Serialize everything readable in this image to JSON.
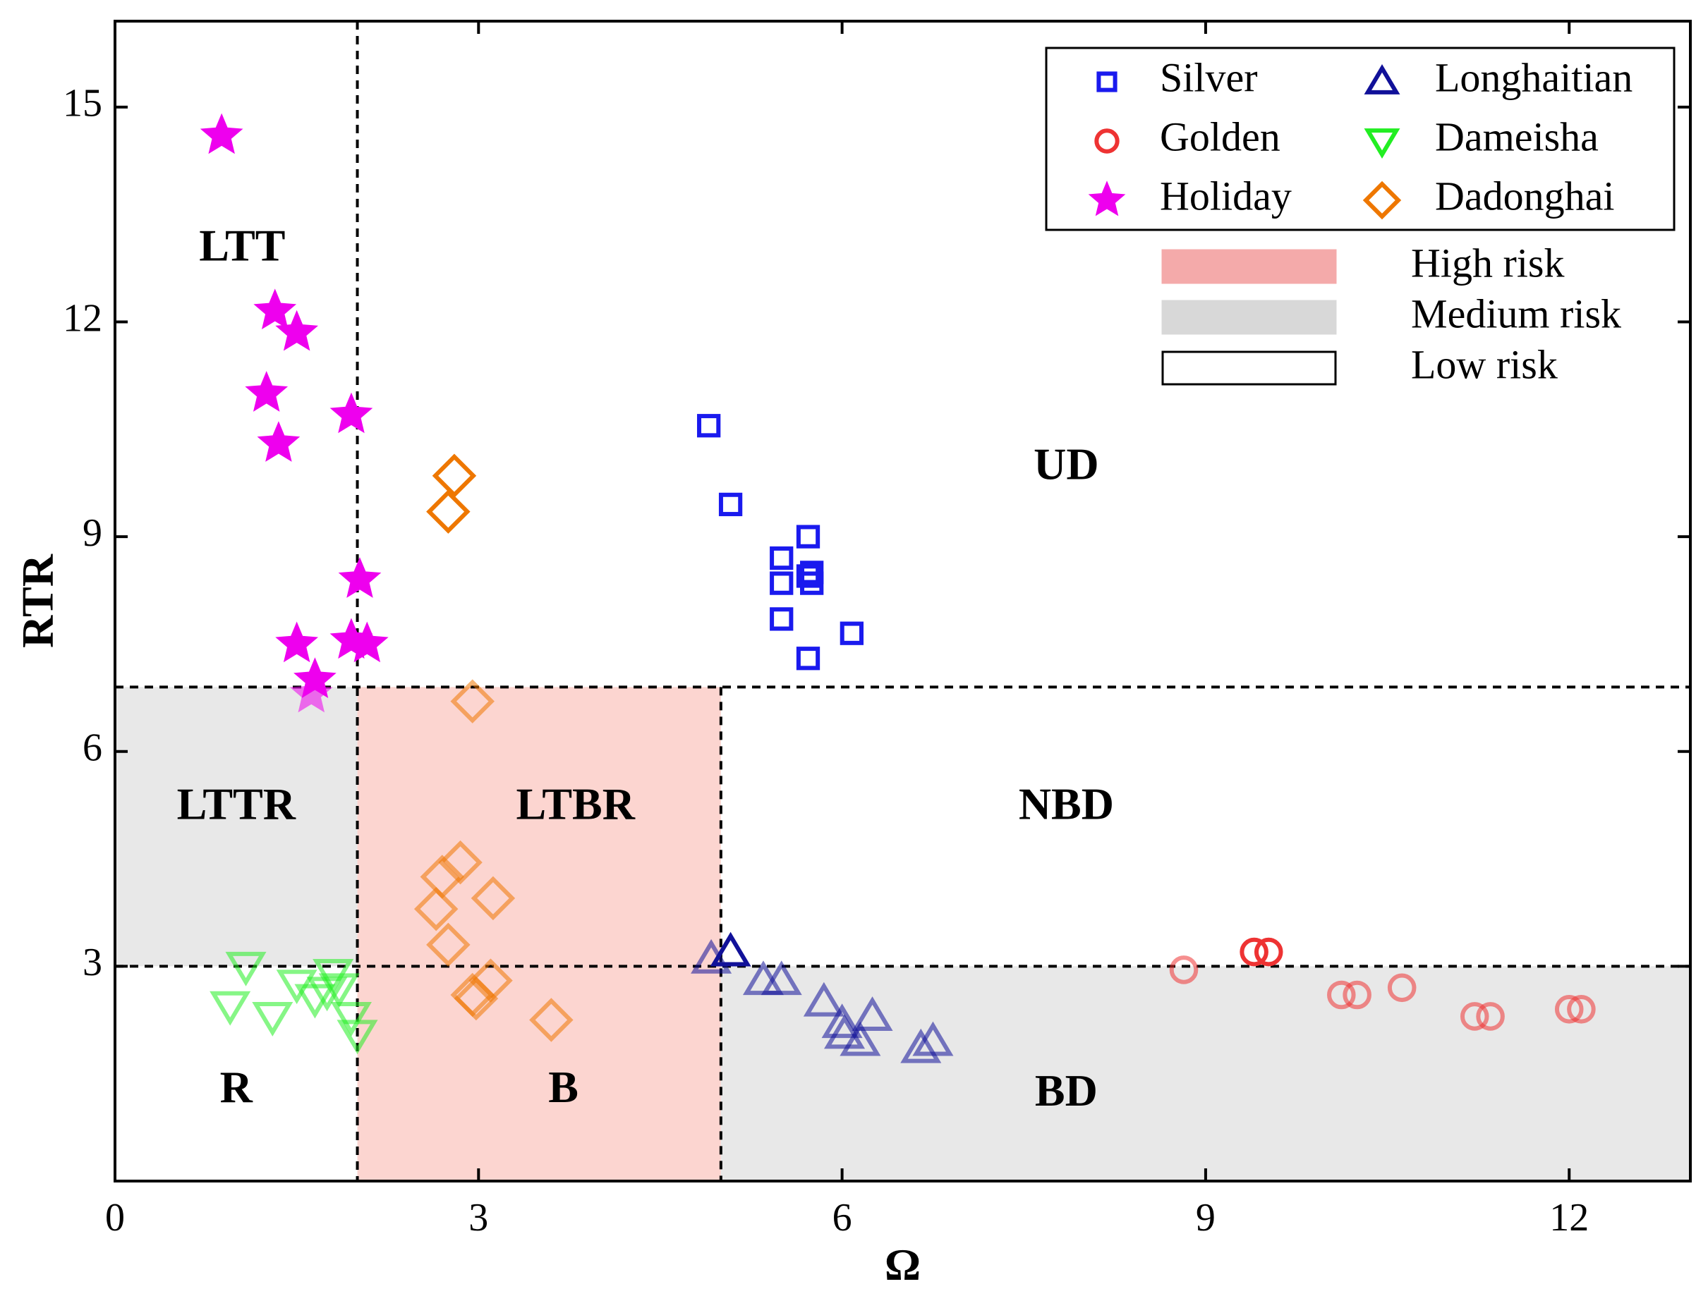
{
  "chart_data": {
    "type": "scatter",
    "xlabel": "Ω",
    "ylabel": "RTR",
    "xlim": [
      0,
      13
    ],
    "ylim": [
      0,
      16.2
    ],
    "x_ticks": [
      0,
      3,
      6,
      9,
      12
    ],
    "y_ticks": [
      3,
      6,
      9,
      12,
      15
    ],
    "x_tick_labels": [
      "0",
      "3",
      "6",
      "9",
      "12"
    ],
    "y_tick_labels": [
      "3",
      "6",
      "9",
      "12",
      "15"
    ],
    "thresholds": {
      "omega": [
        2,
        5
      ],
      "rtr": [
        3,
        6.9
      ]
    },
    "regions": [
      {
        "label": "LTT",
        "x": 1.05,
        "y": 13.0,
        "risk": "low"
      },
      {
        "label": "LTTR",
        "x": 1.0,
        "y": 5.2,
        "risk": "medium"
      },
      {
        "label": "R",
        "x": 1.0,
        "y": 1.25,
        "risk": "low"
      },
      {
        "label": "LTBR",
        "x": 3.8,
        "y": 5.2,
        "risk": "high"
      },
      {
        "label": "B",
        "x": 3.7,
        "y": 1.25,
        "risk": "high"
      },
      {
        "label": "UD",
        "x": 7.85,
        "y": 9.95,
        "risk": "low"
      },
      {
        "label": "NBD",
        "x": 7.85,
        "y": 5.2,
        "risk": "low"
      },
      {
        "label": "BD",
        "x": 7.85,
        "y": 1.2,
        "risk": "medium"
      }
    ],
    "series": [
      {
        "name": "Silver",
        "marker": "square",
        "color": "#1a1aee",
        "points": [
          [
            4.9,
            10.55
          ],
          [
            5.08,
            9.45
          ],
          [
            5.5,
            8.7
          ],
          [
            5.5,
            8.35
          ],
          [
            5.72,
            9.0
          ],
          [
            5.72,
            8.45
          ],
          [
            5.75,
            8.35
          ],
          [
            5.75,
            8.5
          ],
          [
            5.5,
            7.85
          ],
          [
            6.08,
            7.65
          ],
          [
            5.72,
            7.3
          ]
        ]
      },
      {
        "name": "Golden",
        "marker": "circle",
        "color": "#ee3333",
        "points": [
          [
            8.82,
            2.95
          ],
          [
            9.4,
            3.2
          ],
          [
            9.52,
            3.2
          ],
          [
            10.12,
            2.6
          ],
          [
            10.25,
            2.6
          ],
          [
            10.62,
            2.7
          ],
          [
            11.22,
            2.3
          ],
          [
            11.35,
            2.3
          ],
          [
            12.0,
            2.4
          ],
          [
            12.1,
            2.4
          ]
        ]
      },
      {
        "name": "Holiday",
        "marker": "star",
        "color": "#ee00ee",
        "points": [
          [
            0.88,
            14.6
          ],
          [
            1.32,
            12.15
          ],
          [
            1.5,
            11.85
          ],
          [
            1.25,
            11.0
          ],
          [
            1.35,
            10.3
          ],
          [
            1.95,
            10.7
          ],
          [
            2.02,
            8.4
          ],
          [
            1.5,
            7.5
          ],
          [
            1.95,
            7.55
          ],
          [
            2.08,
            7.5
          ],
          [
            1.65,
            7.0
          ],
          [
            1.62,
            6.8
          ]
        ]
      },
      {
        "name": "Longhaitian",
        "marker": "triangle-up",
        "color": "#111199",
        "points": [
          [
            4.92,
            3.1
          ],
          [
            5.08,
            3.2
          ],
          [
            5.35,
            2.8
          ],
          [
            5.5,
            2.8
          ],
          [
            5.85,
            2.5
          ],
          [
            6.0,
            2.2
          ],
          [
            6.02,
            2.05
          ],
          [
            6.15,
            1.95
          ],
          [
            6.25,
            2.3
          ],
          [
            6.65,
            1.85
          ],
          [
            6.75,
            1.95
          ]
        ]
      },
      {
        "name": "Dameisha",
        "marker": "triangle-down",
        "color": "#22ee22",
        "points": [
          [
            1.08,
            3.0
          ],
          [
            0.95,
            2.45
          ],
          [
            1.3,
            2.3
          ],
          [
            1.5,
            2.75
          ],
          [
            1.65,
            2.55
          ],
          [
            1.75,
            2.65
          ],
          [
            1.8,
            2.9
          ],
          [
            1.85,
            2.7
          ],
          [
            1.95,
            2.3
          ],
          [
            2.0,
            2.05
          ]
        ]
      },
      {
        "name": "Dadonghai",
        "marker": "diamond",
        "color": "#ee7700",
        "points": [
          [
            2.8,
            9.85
          ],
          [
            2.75,
            9.35
          ],
          [
            2.95,
            6.7
          ],
          [
            2.65,
            3.8
          ],
          [
            2.7,
            4.25
          ],
          [
            2.85,
            4.45
          ],
          [
            3.12,
            3.95
          ],
          [
            2.75,
            3.3
          ],
          [
            3.1,
            2.8
          ],
          [
            2.95,
            2.6
          ],
          [
            2.98,
            2.55
          ],
          [
            3.6,
            2.25
          ]
        ]
      }
    ],
    "legend": {
      "placement": "top-right",
      "entries": [
        "Silver",
        "Golden",
        "Holiday",
        "Longhaitian",
        "Dameisha",
        "Dadonghai"
      ]
    },
    "risk_legend": [
      {
        "label": "High risk",
        "color": "#f4aaaa"
      },
      {
        "label": "Medium risk",
        "color": "#d8d8d8"
      },
      {
        "label": "Low risk",
        "color": "#ffffff"
      }
    ],
    "colors": {
      "high_zone": "#fcd5d0",
      "medium_zone": "#e8e8e8"
    }
  }
}
